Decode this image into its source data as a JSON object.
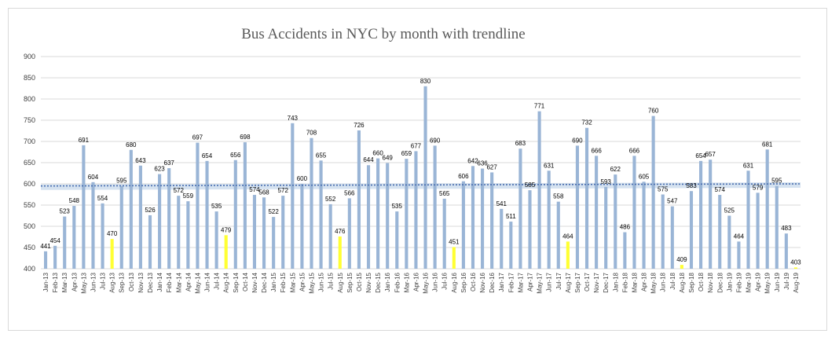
{
  "chart_data": {
    "type": "bar",
    "title": "Bus Accidents in NYC by month with trendline",
    "xlabel": "",
    "ylabel": "",
    "ylim": [
      400,
      900
    ],
    "yticks": [
      400,
      450,
      500,
      550,
      600,
      650,
      700,
      750,
      800,
      850,
      900
    ],
    "grid": "horizontal",
    "legend": "none",
    "colors": {
      "bar": "#9ab5d6",
      "highlight": "#ffff33",
      "trendline": "#4a6fb0",
      "trendband": "#c3d5e9",
      "grid": "#d9d9d9"
    },
    "highlight_categories": [
      "Aug-13",
      "Aug-14",
      "Aug-15",
      "Aug-16",
      "Aug-17",
      "Aug-18",
      "Aug-19"
    ],
    "trendline": {
      "start": 595,
      "end": 600
    },
    "categories": [
      "Jan-13",
      "Feb-13",
      "Mar-13",
      "Apr-13",
      "May-13",
      "Jun-13",
      "Jul-13",
      "Aug-13",
      "Sep-13",
      "Oct-13",
      "Nov-13",
      "Dec-13",
      "Jan-14",
      "Feb-14",
      "Mar-14",
      "Apr-14",
      "May-14",
      "Jun-14",
      "Jul-14",
      "Aug-14",
      "Sep-14",
      "Oct-14",
      "Nov-14",
      "Dec-14",
      "Jan-15",
      "Feb-15",
      "Mar-15",
      "Apr-15",
      "May-15",
      "Jun-15",
      "Jul-15",
      "Aug-15",
      "Sep-15",
      "Oct-15",
      "Nov-15",
      "Dec-15",
      "Jan-16",
      "Feb-16",
      "Mar-16",
      "Apr-16",
      "May-16",
      "Jun-16",
      "Jul-16",
      "Aug-16",
      "Sep-16",
      "Oct-16",
      "Nov-16",
      "Dec-16",
      "Jan-17",
      "Feb-17",
      "Mar-17",
      "Apr-17",
      "May-17",
      "Jun-17",
      "Jul-17",
      "Aug-17",
      "Sep-17",
      "Oct-17",
      "Nov-17",
      "Dec-17",
      "Jan-18",
      "Feb-18",
      "Mar-18",
      "Apr-18",
      "May-18",
      "Jun-18",
      "Jul-18",
      "Aug-18",
      "Sep-18",
      "Oct-18",
      "Nov-18",
      "Dec-18",
      "Jan-19",
      "Feb-19",
      "Mar-19",
      "Apr-19",
      "May-19",
      "Jun-19",
      "Jul-19",
      "Aug-19"
    ],
    "values": [
      441,
      454,
      523,
      548,
      691,
      604,
      554,
      470,
      595,
      680,
      643,
      526,
      623,
      637,
      572,
      559,
      697,
      654,
      535,
      479,
      656,
      698,
      574,
      568,
      522,
      572,
      743,
      600,
      708,
      655,
      552,
      476,
      566,
      726,
      644,
      660,
      649,
      535,
      659,
      677,
      830,
      690,
      565,
      451,
      606,
      642,
      636,
      627,
      541,
      511,
      683,
      585,
      771,
      631,
      558,
      464,
      690,
      732,
      666,
      593,
      622,
      486,
      666,
      605,
      760,
      575,
      547,
      409,
      583,
      654,
      657,
      574,
      525,
      464,
      631,
      579,
      681,
      595,
      483,
      403
    ]
  }
}
